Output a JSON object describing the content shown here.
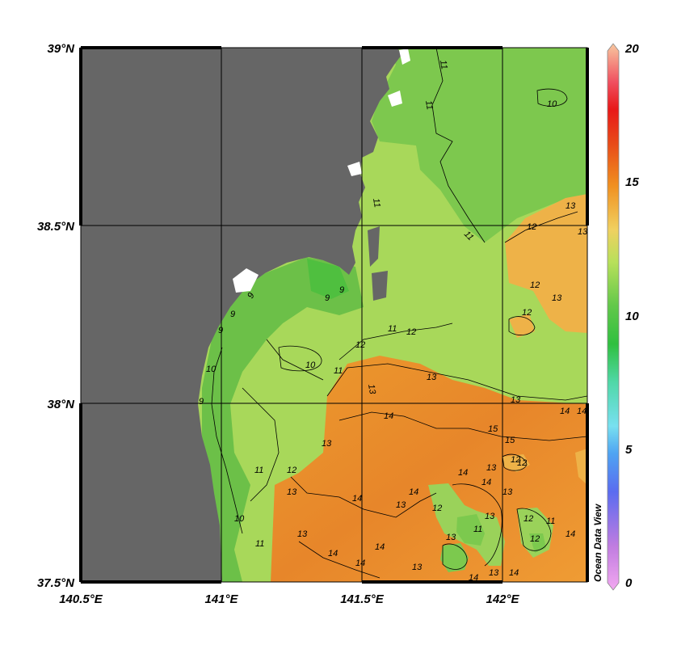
{
  "map": {
    "lat_labels": [
      "39°N",
      "38.5°N",
      "38°N",
      "37.5°N"
    ],
    "lon_labels": [
      "140.5°E",
      "141°E",
      "141.5°E",
      "142°E"
    ],
    "land_color": "#666666",
    "grid_color": "#000000"
  },
  "contour_labels": [
    "11",
    "10",
    "11",
    "11",
    "11",
    "9",
    "9",
    "9",
    "9",
    "9",
    "10",
    "11",
    "12",
    "11",
    "12",
    "13",
    "13",
    "14",
    "13",
    "12",
    "12",
    "13",
    "13",
    "12",
    "13",
    "9",
    "10",
    "11",
    "12",
    "13",
    "13",
    "14",
    "14",
    "15",
    "15",
    "14",
    "13",
    "14",
    "12",
    "13",
    "14",
    "14",
    "11",
    "12",
    "13",
    "13",
    "14",
    "14",
    "13",
    "12",
    "11",
    "12",
    "13",
    "14",
    "14",
    "14",
    "12",
    "11",
    "13",
    "13",
    "14",
    "10"
  ],
  "colorbar": {
    "labels": [
      "20",
      "15",
      "10",
      "5",
      "0"
    ],
    "min": 0,
    "max": 20,
    "credit": "Ocean Data View"
  }
}
